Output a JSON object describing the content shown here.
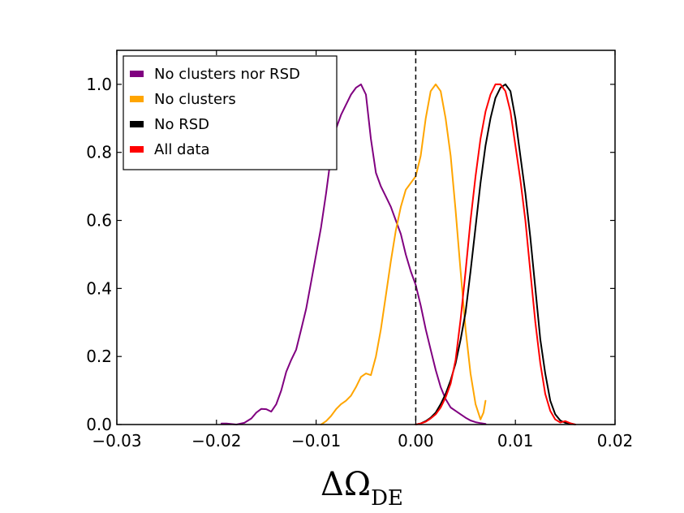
{
  "chart_data": {
    "type": "line",
    "title": "",
    "xlabel": "ΔΩ",
    "xlabel_subscript": "DE",
    "ylabel": "",
    "xlim": [
      -0.03,
      0.02
    ],
    "ylim": [
      0.0,
      1.1
    ],
    "xticks": [
      -0.03,
      -0.02,
      -0.01,
      0.0,
      0.01,
      0.02
    ],
    "xtick_labels": [
      "−0.03",
      "−0.02",
      "−0.01",
      "0.00",
      "0.01",
      "0.02"
    ],
    "yticks": [
      0.0,
      0.2,
      0.4,
      0.6,
      0.8,
      1.0
    ],
    "ytick_labels": [
      "0.0",
      "0.2",
      "0.4",
      "0.6",
      "0.8",
      "1.0"
    ],
    "grid": false,
    "legend_position": "top-left",
    "reference_line": {
      "x": 0.0,
      "style": "dashed"
    },
    "series": [
      {
        "name": "No clusters nor RSD",
        "color": "#800080",
        "x": [
          -0.0195,
          -0.019,
          -0.018,
          -0.0172,
          -0.0165,
          -0.016,
          -0.0155,
          -0.015,
          -0.0145,
          -0.014,
          -0.0135,
          -0.013,
          -0.0125,
          -0.012,
          -0.0115,
          -0.011,
          -0.0105,
          -0.01,
          -0.0095,
          -0.009,
          -0.0085,
          -0.008,
          -0.0075,
          -0.007,
          -0.0065,
          -0.006,
          -0.0055,
          -0.005,
          -0.0045,
          -0.004,
          -0.0035,
          -0.003,
          -0.0025,
          -0.002,
          -0.0015,
          -0.001,
          -0.0005,
          0.0,
          0.0005,
          0.001,
          0.0015,
          0.002,
          0.0025,
          0.003,
          0.0035,
          0.004,
          0.0045,
          0.005,
          0.0055,
          0.006,
          0.0065,
          0.007
        ],
        "y": [
          0.003,
          0.003,
          0.0,
          0.005,
          0.018,
          0.035,
          0.046,
          0.045,
          0.038,
          0.06,
          0.1,
          0.155,
          0.19,
          0.22,
          0.28,
          0.34,
          0.42,
          0.5,
          0.58,
          0.68,
          0.79,
          0.87,
          0.91,
          0.94,
          0.97,
          0.99,
          1.0,
          0.97,
          0.84,
          0.74,
          0.7,
          0.67,
          0.64,
          0.6,
          0.56,
          0.5,
          0.45,
          0.41,
          0.35,
          0.28,
          0.22,
          0.16,
          0.11,
          0.075,
          0.05,
          0.04,
          0.03,
          0.02,
          0.012,
          0.007,
          0.004,
          0.002
        ]
      },
      {
        "name": "No clusters",
        "color": "#FFA500",
        "x": [
          -0.0095,
          -0.009,
          -0.0085,
          -0.008,
          -0.0075,
          -0.007,
          -0.0065,
          -0.006,
          -0.0055,
          -0.005,
          -0.0045,
          -0.004,
          -0.0035,
          -0.003,
          -0.0025,
          -0.002,
          -0.0015,
          -0.001,
          -0.0005,
          0.0,
          0.0005,
          0.001,
          0.0015,
          0.002,
          0.0025,
          0.003,
          0.0035,
          0.004,
          0.0045,
          0.005,
          0.0055,
          0.006,
          0.0065,
          0.0068,
          0.007
        ],
        "y": [
          0.0,
          0.01,
          0.025,
          0.045,
          0.06,
          0.07,
          0.085,
          0.11,
          0.14,
          0.15,
          0.145,
          0.2,
          0.28,
          0.38,
          0.48,
          0.57,
          0.64,
          0.69,
          0.71,
          0.73,
          0.79,
          0.9,
          0.98,
          1.0,
          0.98,
          0.9,
          0.79,
          0.63,
          0.45,
          0.28,
          0.15,
          0.06,
          0.015,
          0.035,
          0.07
        ]
      },
      {
        "name": "No RSD",
        "color": "#000000",
        "x": [
          0.0,
          0.0005,
          0.001,
          0.0015,
          0.002,
          0.0025,
          0.003,
          0.0035,
          0.004,
          0.0045,
          0.005,
          0.0055,
          0.006,
          0.0065,
          0.007,
          0.0075,
          0.008,
          0.0085,
          0.009,
          0.0095,
          0.01,
          0.0105,
          0.011,
          0.0115,
          0.012,
          0.0125,
          0.013,
          0.0135,
          0.014,
          0.0145,
          0.015,
          0.0155,
          0.016
        ],
        "y": [
          0.0,
          0.003,
          0.01,
          0.02,
          0.035,
          0.06,
          0.09,
          0.13,
          0.18,
          0.25,
          0.33,
          0.45,
          0.58,
          0.71,
          0.82,
          0.9,
          0.96,
          0.99,
          1.0,
          0.98,
          0.9,
          0.79,
          0.68,
          0.55,
          0.4,
          0.25,
          0.15,
          0.07,
          0.03,
          0.012,
          0.005,
          0.003,
          0.0
        ]
      },
      {
        "name": "All data",
        "color": "#FF0000",
        "x": [
          0.0,
          0.0005,
          0.001,
          0.0015,
          0.002,
          0.0025,
          0.003,
          0.0035,
          0.004,
          0.0045,
          0.005,
          0.0055,
          0.006,
          0.0065,
          0.007,
          0.0075,
          0.008,
          0.0085,
          0.009,
          0.0095,
          0.01,
          0.0105,
          0.011,
          0.0115,
          0.012,
          0.0125,
          0.013,
          0.0135,
          0.014,
          0.0145,
          0.015,
          0.0155,
          0.016
        ],
        "y": [
          0.0,
          0.003,
          0.008,
          0.018,
          0.03,
          0.05,
          0.08,
          0.12,
          0.19,
          0.31,
          0.45,
          0.6,
          0.73,
          0.84,
          0.92,
          0.97,
          1.0,
          1.0,
          0.98,
          0.92,
          0.82,
          0.72,
          0.6,
          0.45,
          0.3,
          0.18,
          0.09,
          0.04,
          0.015,
          0.006,
          0.01,
          0.004,
          0.0
        ]
      }
    ]
  }
}
